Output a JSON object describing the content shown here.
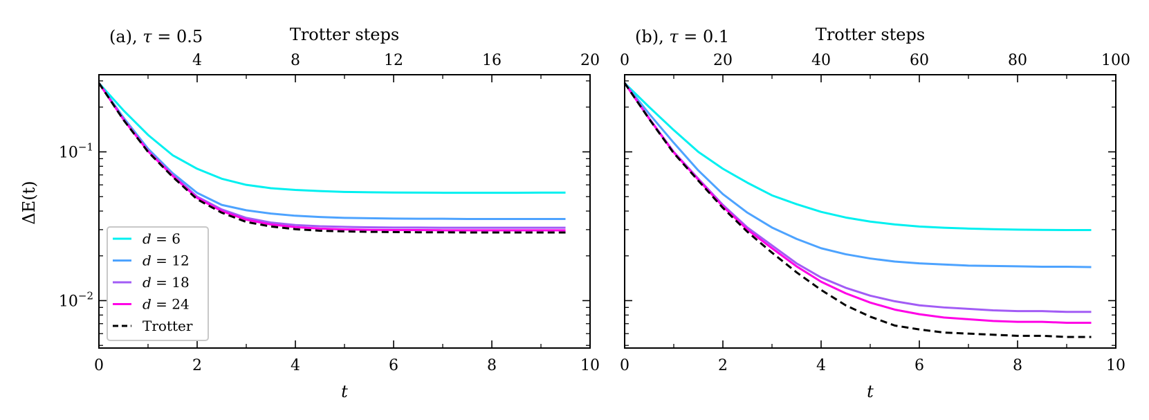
{
  "figure": {
    "ylabel": "ΔE(t)",
    "legend_position": "lower-left of panel (a)"
  },
  "chart_data": [
    {
      "type": "line",
      "title": "(a), τ = 0.5",
      "title_prefix": "(a), ",
      "title_symbol": "τ",
      "title_suffix": " = 0.5",
      "xlabel": "t",
      "top_xlabel": "Trotter steps",
      "ylabel": "ΔE(t)",
      "yscale": "log",
      "xlim": [
        0,
        10
      ],
      "ylim": [
        0.0048,
        0.33
      ],
      "xticks": [
        0,
        2,
        4,
        6,
        8,
        10
      ],
      "top_xlim": [
        0,
        20
      ],
      "top_xticks": [
        4,
        8,
        12,
        16,
        20
      ],
      "yticks": [
        0.1,
        0.01
      ],
      "ytick_labels": [
        {
          "base": "10",
          "exp": "−1"
        },
        {
          "base": "10",
          "exp": "−2"
        }
      ],
      "x": [
        0,
        0.5,
        1,
        1.5,
        2,
        2.5,
        3,
        3.5,
        4,
        4.5,
        5,
        5.5,
        6,
        6.5,
        7,
        7.5,
        8,
        8.5,
        9,
        9.5
      ],
      "series": [
        {
          "name": "d = 6",
          "color": "#00f0f0",
          "dashed": false,
          "values": [
            0.29,
            0.19,
            0.13,
            0.095,
            0.077,
            0.066,
            0.06,
            0.057,
            0.0555,
            0.0545,
            0.0538,
            0.0535,
            0.0533,
            0.0532,
            0.0531,
            0.0531,
            0.0531,
            0.0531,
            0.0532,
            0.0532
          ]
        },
        {
          "name": "d = 12",
          "color": "#4da3ff",
          "dashed": false,
          "values": [
            0.29,
            0.17,
            0.105,
            0.072,
            0.053,
            0.044,
            0.0405,
            0.0385,
            0.0372,
            0.0365,
            0.036,
            0.0358,
            0.0356,
            0.0355,
            0.0355,
            0.0354,
            0.0354,
            0.0354,
            0.0354,
            0.0354
          ]
        },
        {
          "name": "d = 18",
          "color": "#a25cf5",
          "dashed": false,
          "values": [
            0.29,
            0.165,
            0.102,
            0.07,
            0.05,
            0.041,
            0.036,
            0.0335,
            0.0322,
            0.0316,
            0.0313,
            0.0311,
            0.031,
            0.031,
            0.0309,
            0.0309,
            0.0309,
            0.0309,
            0.0309,
            0.0309
          ]
        },
        {
          "name": "d = 24",
          "color": "#ff00e6",
          "dashed": false,
          "values": [
            0.29,
            0.165,
            0.101,
            0.069,
            0.049,
            0.04,
            0.035,
            0.0325,
            0.0312,
            0.0305,
            0.0301,
            0.0299,
            0.0298,
            0.0298,
            0.0297,
            0.0297,
            0.0297,
            0.0297,
            0.0297,
            0.0297
          ]
        },
        {
          "name": "Trotter",
          "color": "#000000",
          "dashed": true,
          "values": [
            0.29,
            0.164,
            0.1,
            0.068,
            0.048,
            0.039,
            0.0338,
            0.0315,
            0.0302,
            0.0295,
            0.0292,
            0.029,
            0.0289,
            0.0288,
            0.0288,
            0.0287,
            0.0287,
            0.0287,
            0.0287,
            0.0287
          ]
        }
      ],
      "legend": {
        "show": true,
        "position": "lower-left"
      }
    },
    {
      "type": "line",
      "title": "(b), τ = 0.1",
      "title_prefix": "(b), ",
      "title_symbol": "τ",
      "title_suffix": " = 0.1",
      "xlabel": "t",
      "top_xlabel": "Trotter steps",
      "yscale": "log",
      "xlim": [
        0,
        10
      ],
      "ylim": [
        0.0048,
        0.33
      ],
      "xticks": [
        0,
        2,
        4,
        6,
        8,
        10
      ],
      "top_xlim": [
        0,
        100
      ],
      "top_xticks": [
        0,
        20,
        40,
        60,
        80,
        100
      ],
      "x": [
        0,
        0.5,
        1,
        1.5,
        2,
        2.5,
        3,
        3.5,
        4,
        4.5,
        5,
        5.5,
        6,
        6.5,
        7,
        7.5,
        8,
        8.5,
        9,
        9.5
      ],
      "series": [
        {
          "name": "d = 6",
          "color": "#00f0f0",
          "dashed": false,
          "values": [
            0.29,
            0.2,
            0.14,
            0.1,
            0.077,
            0.062,
            0.051,
            0.0445,
            0.0395,
            0.0362,
            0.034,
            0.0325,
            0.0315,
            0.0309,
            0.0305,
            0.0302,
            0.03,
            0.0299,
            0.0298,
            0.0298
          ]
        },
        {
          "name": "d = 12",
          "color": "#4da3ff",
          "dashed": false,
          "values": [
            0.29,
            0.18,
            0.115,
            0.075,
            0.052,
            0.039,
            0.031,
            0.026,
            0.0225,
            0.0205,
            0.0192,
            0.0183,
            0.0178,
            0.0175,
            0.0172,
            0.0171,
            0.017,
            0.0169,
            0.0169,
            0.0168
          ]
        },
        {
          "name": "d = 18",
          "color": "#a25cf5",
          "dashed": false,
          "values": [
            0.29,
            0.168,
            0.1,
            0.066,
            0.044,
            0.031,
            0.0235,
            0.0178,
            0.0143,
            0.0122,
            0.0108,
            0.0099,
            0.0093,
            0.009,
            0.0088,
            0.0086,
            0.0085,
            0.0085,
            0.0084,
            0.0084
          ]
        },
        {
          "name": "d = 24",
          "color": "#ff00e6",
          "dashed": false,
          "values": [
            0.29,
            0.167,
            0.099,
            0.065,
            0.043,
            0.03,
            0.0225,
            0.017,
            0.0134,
            0.0112,
            0.0097,
            0.0087,
            0.0081,
            0.0077,
            0.0075,
            0.0073,
            0.0072,
            0.0072,
            0.0071,
            0.0071
          ]
        },
        {
          "name": "Trotter",
          "color": "#000000",
          "dashed": true,
          "values": [
            0.29,
            0.166,
            0.098,
            0.064,
            0.042,
            0.029,
            0.021,
            0.0155,
            0.0118,
            0.0093,
            0.0078,
            0.0068,
            0.0064,
            0.0061,
            0.006,
            0.0059,
            0.0058,
            0.0058,
            0.0057,
            0.0057
          ]
        }
      ],
      "legend": {
        "show": false
      }
    }
  ]
}
